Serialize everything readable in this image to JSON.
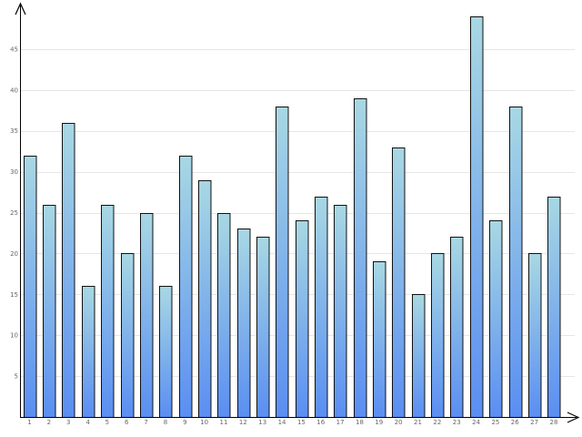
{
  "chart_data": {
    "type": "bar",
    "title": "",
    "xlabel": "",
    "ylabel": "",
    "categories": [
      "1",
      "2",
      "3",
      "4",
      "5",
      "6",
      "7",
      "8",
      "9",
      "10",
      "11",
      "12",
      "13",
      "14",
      "15",
      "16",
      "17",
      "18",
      "19",
      "20",
      "21",
      "22",
      "23",
      "24",
      "25",
      "26",
      "27",
      "28"
    ],
    "values": [
      32,
      26,
      36,
      16,
      26,
      20,
      25,
      16,
      32,
      29,
      25,
      23,
      22,
      38,
      24,
      27,
      26,
      39,
      19,
      33,
      15,
      20,
      22,
      49,
      24,
      38,
      20,
      27
    ],
    "ylim": [
      0,
      50
    ],
    "yticks": [
      5,
      10,
      15,
      20,
      25,
      30,
      35,
      40,
      45
    ],
    "ytick_labels": [
      "5",
      "10",
      "15",
      "20",
      "25",
      "30",
      "35",
      "40",
      "45"
    ],
    "grid": true,
    "colors": {
      "bar_top": "#a8d8e3",
      "bar_bottom": "#5a8ef2",
      "bar_stroke": "#111111",
      "grid": "#e6e6e6",
      "axis": "#000000"
    }
  }
}
